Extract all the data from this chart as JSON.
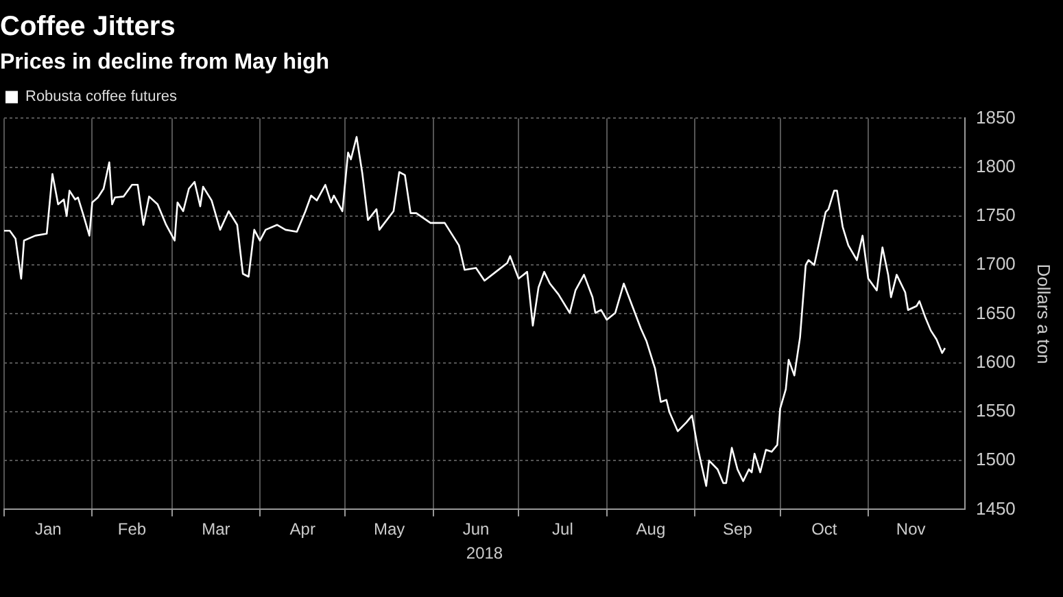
{
  "chart_data": {
    "type": "line",
    "title": "Coffee Jitters",
    "subtitle": "Prices in decline from May high",
    "xlabel": "2018",
    "ylabel": "Dollars a ton",
    "x": [
      "2018-01-01",
      "2018-01-03",
      "2018-01-05",
      "2018-01-07",
      "2018-01-08",
      "2018-01-12",
      "2018-01-16",
      "2018-01-18",
      "2018-01-20",
      "2018-01-22",
      "2018-01-23",
      "2018-01-24",
      "2018-01-26",
      "2018-01-27",
      "2018-01-29",
      "2018-01-31",
      "2018-02-01",
      "2018-02-03",
      "2018-02-05",
      "2018-02-07",
      "2018-02-08",
      "2018-02-09",
      "2018-02-12",
      "2018-02-15",
      "2018-02-17",
      "2018-02-19",
      "2018-02-21",
      "2018-02-24",
      "2018-02-27",
      "2018-03-02",
      "2018-03-03",
      "2018-03-05",
      "2018-03-07",
      "2018-03-09",
      "2018-03-11",
      "2018-03-12",
      "2018-03-15",
      "2018-03-18",
      "2018-03-21",
      "2018-03-24",
      "2018-03-26",
      "2018-03-28",
      "2018-03-30",
      "2018-04-01",
      "2018-04-03",
      "2018-04-07",
      "2018-04-10",
      "2018-04-14",
      "2018-04-17",
      "2018-04-19",
      "2018-04-21",
      "2018-04-24",
      "2018-04-26",
      "2018-04-27",
      "2018-04-30",
      "2018-05-02",
      "2018-05-03",
      "2018-05-05",
      "2018-05-07",
      "2018-05-09",
      "2018-05-12",
      "2018-05-13",
      "2018-05-18",
      "2018-05-20",
      "2018-05-22",
      "2018-05-24",
      "2018-05-26",
      "2018-05-31",
      "2018-06-05",
      "2018-06-10",
      "2018-06-12",
      "2018-06-16",
      "2018-06-19",
      "2018-06-23",
      "2018-06-27",
      "2018-06-28",
      "2018-07-01",
      "2018-07-04",
      "2018-07-06",
      "2018-07-08",
      "2018-07-10",
      "2018-07-12",
      "2018-07-15",
      "2018-07-19",
      "2018-07-21",
      "2018-07-24",
      "2018-07-27",
      "2018-07-28",
      "2018-07-30",
      "2018-08-01",
      "2018-08-04",
      "2018-08-07",
      "2018-08-10",
      "2018-08-13",
      "2018-08-15",
      "2018-08-18",
      "2018-08-20",
      "2018-08-22",
      "2018-08-23",
      "2018-08-26",
      "2018-08-29",
      "2018-08-31",
      "2018-09-02",
      "2018-09-05",
      "2018-09-06",
      "2018-09-09",
      "2018-09-11",
      "2018-09-12",
      "2018-09-14",
      "2018-09-16",
      "2018-09-18",
      "2018-09-20",
      "2018-09-21",
      "2018-09-22",
      "2018-09-24",
      "2018-09-26",
      "2018-09-28",
      "2018-09-30",
      "2018-10-01",
      "2018-10-03",
      "2018-10-04",
      "2018-10-06",
      "2018-10-08",
      "2018-10-10",
      "2018-10-11",
      "2018-10-13",
      "2018-10-15",
      "2018-10-17",
      "2018-10-18",
      "2018-10-20",
      "2018-10-21",
      "2018-10-23",
      "2018-10-25",
      "2018-10-28",
      "2018-10-30",
      "2018-11-01",
      "2018-11-04",
      "2018-11-06",
      "2018-11-08",
      "2018-11-09",
      "2018-11-11",
      "2018-11-14",
      "2018-11-15",
      "2018-11-18",
      "2018-11-19",
      "2018-11-21",
      "2018-11-23",
      "2018-11-25",
      "2018-11-27",
      "2018-11-28"
    ],
    "series": [
      {
        "name": "Robusta coffee futures",
        "color": "#ffffff",
        "values": [
          1735,
          1735,
          1727,
          1686,
          1725,
          1730,
          1732,
          1793,
          1762,
          1767,
          1750,
          1776,
          1767,
          1769,
          1750,
          1730,
          1764,
          1769,
          1778,
          1805,
          1762,
          1769,
          1770,
          1782,
          1782,
          1741,
          1770,
          1762,
          1741,
          1725,
          1764,
          1755,
          1778,
          1785,
          1760,
          1780,
          1766,
          1736,
          1755,
          1741,
          1691,
          1688,
          1736,
          1725,
          1736,
          1741,
          1736,
          1734,
          1755,
          1771,
          1766,
          1782,
          1764,
          1771,
          1755,
          1815,
          1808,
          1831,
          1794,
          1746,
          1757,
          1736,
          1755,
          1795,
          1792,
          1753,
          1753,
          1743,
          1743,
          1720,
          1695,
          1697,
          1684,
          1693,
          1702,
          1709,
          1686,
          1693,
          1638,
          1677,
          1693,
          1681,
          1670,
          1651,
          1674,
          1690,
          1667,
          1651,
          1654,
          1644,
          1651,
          1681,
          1658,
          1635,
          1622,
          1594,
          1560,
          1562,
          1550,
          1530,
          1539,
          1546,
          1513,
          1474,
          1500,
          1491,
          1477,
          1477,
          1513,
          1491,
          1479,
          1491,
          1488,
          1507,
          1488,
          1511,
          1509,
          1516,
          1553,
          1573,
          1603,
          1587,
          1626,
          1700,
          1705,
          1700,
          1727,
          1754,
          1757,
          1776,
          1776,
          1739,
          1720,
          1705,
          1730,
          1686,
          1674,
          1718,
          1690,
          1667,
          1690,
          1672,
          1654,
          1658,
          1663,
          1647,
          1633,
          1624,
          1610,
          1615
        ]
      }
    ],
    "xlim": [
      "2018-01-01",
      "2018-12-05"
    ],
    "xticks": [
      {
        "value": "2018-01-01",
        "label": null
      },
      {
        "value": "2018-01-16T12:00",
        "label": "Jan"
      },
      {
        "value": "2018-02-01",
        "label": null
      },
      {
        "value": "2018-02-15",
        "label": "Feb"
      },
      {
        "value": "2018-03-01",
        "label": null
      },
      {
        "value": "2018-03-16T12:00",
        "label": "Mar"
      },
      {
        "value": "2018-04-01",
        "label": null
      },
      {
        "value": "2018-04-16",
        "label": "Apr"
      },
      {
        "value": "2018-05-01",
        "label": null
      },
      {
        "value": "2018-05-16T12:00",
        "label": "May"
      },
      {
        "value": "2018-06-01",
        "label": null
      },
      {
        "value": "2018-06-16",
        "label": "Jun"
      },
      {
        "value": "2018-07-01",
        "label": null
      },
      {
        "value": "2018-07-16T12:00",
        "label": "Jul"
      },
      {
        "value": "2018-08-01",
        "label": null
      },
      {
        "value": "2018-08-16T12:00",
        "label": "Aug"
      },
      {
        "value": "2018-09-01",
        "label": null
      },
      {
        "value": "2018-09-16",
        "label": "Sep"
      },
      {
        "value": "2018-10-01",
        "label": null
      },
      {
        "value": "2018-10-16T12:00",
        "label": "Oct"
      },
      {
        "value": "2018-11-01",
        "label": null
      },
      {
        "value": "2018-11-16",
        "label": "Nov"
      }
    ],
    "ylim": [
      1450,
      1850
    ],
    "yticks": [
      1450,
      1500,
      1550,
      1600,
      1650,
      1700,
      1750,
      1800,
      1850
    ],
    "grid": true,
    "legend": "top left",
    "marker": "none",
    "line_style": "solid"
  }
}
